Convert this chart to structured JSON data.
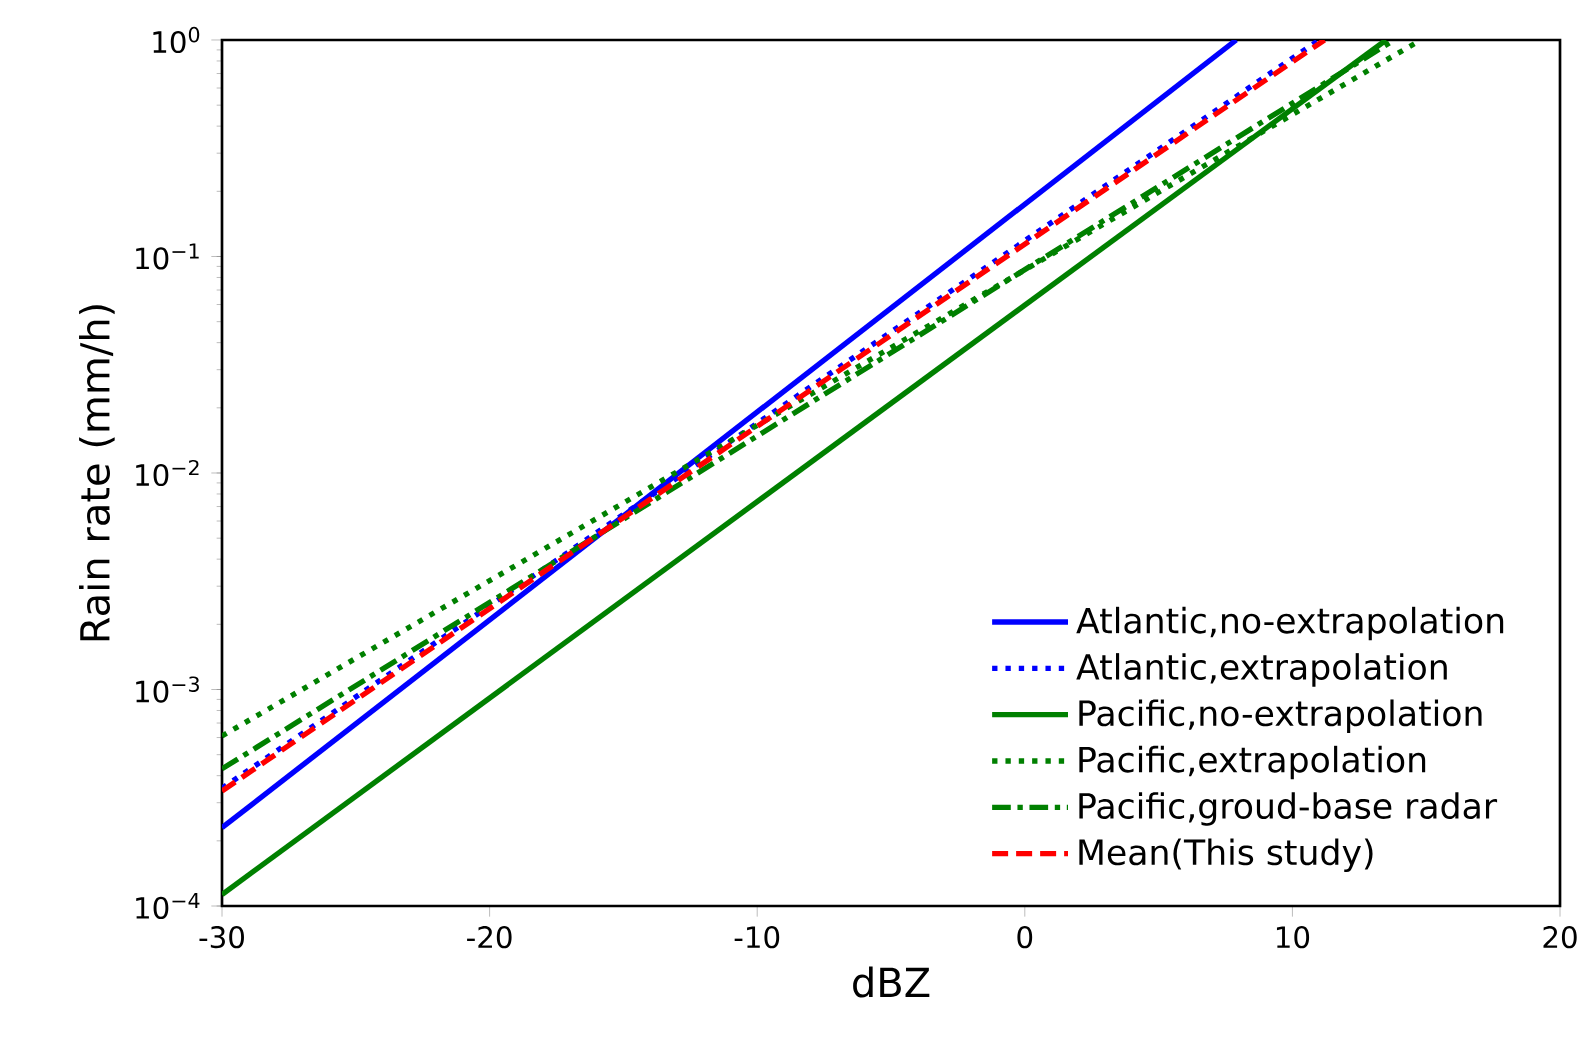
{
  "chart_data": {
    "type": "line",
    "xlabel": "dBZ",
    "ylabel": "Rain rate (mm/h)",
    "log": "y",
    "xlim": [
      -30,
      20
    ],
    "ylim": [
      0.0001,
      1
    ],
    "xticks": [
      -30,
      -20,
      -10,
      0,
      10,
      20
    ],
    "yticks": [
      {
        "value": 0.0001,
        "label": "10$^{−4}$"
      },
      {
        "value": 0.001,
        "label": "10$^{−3}$"
      },
      {
        "value": 0.01,
        "label": "10$^{−2}$"
      },
      {
        "value": 0.1,
        "label": "10$^{−1}$"
      },
      {
        "value": 1,
        "label": "10$^{0}$"
      }
    ],
    "grid": false,
    "legend": "bottom right",
    "series": [
      {
        "name": "Atlantic,no-extrapolation",
        "color": "#0000ff",
        "line_style": "solid",
        "x": [
          -30,
          7.9
        ],
        "values": [
          0.00023,
          1
        ]
      },
      {
        "name": "Atlantic,extrapolation",
        "color": "#0000ff",
        "line_style": "dotted",
        "x": [
          -30,
          11.0
        ],
        "values": [
          0.00035,
          1
        ]
      },
      {
        "name": "Pacific,no-extrapolation",
        "color": "#008000",
        "line_style": "solid",
        "x": [
          -30,
          13.5
        ],
        "values": [
          0.000113,
          1
        ]
      },
      {
        "name": "Pacific,extrapolation",
        "color": "#008000",
        "line_style": "dotted",
        "x": [
          -30,
          14.8
        ],
        "values": [
          0.00061,
          1
        ]
      },
      {
        "name": "Pacific,groud-base radar",
        "color": "#008000",
        "line_style": "dashdot",
        "x": [
          -30,
          13.8
        ],
        "values": [
          0.00043,
          1
        ]
      },
      {
        "name": "Mean(This study)",
        "color": "#ff0000",
        "line_style": "dashed",
        "x": [
          -30,
          11.2
        ],
        "values": [
          0.00034,
          1
        ]
      }
    ]
  }
}
